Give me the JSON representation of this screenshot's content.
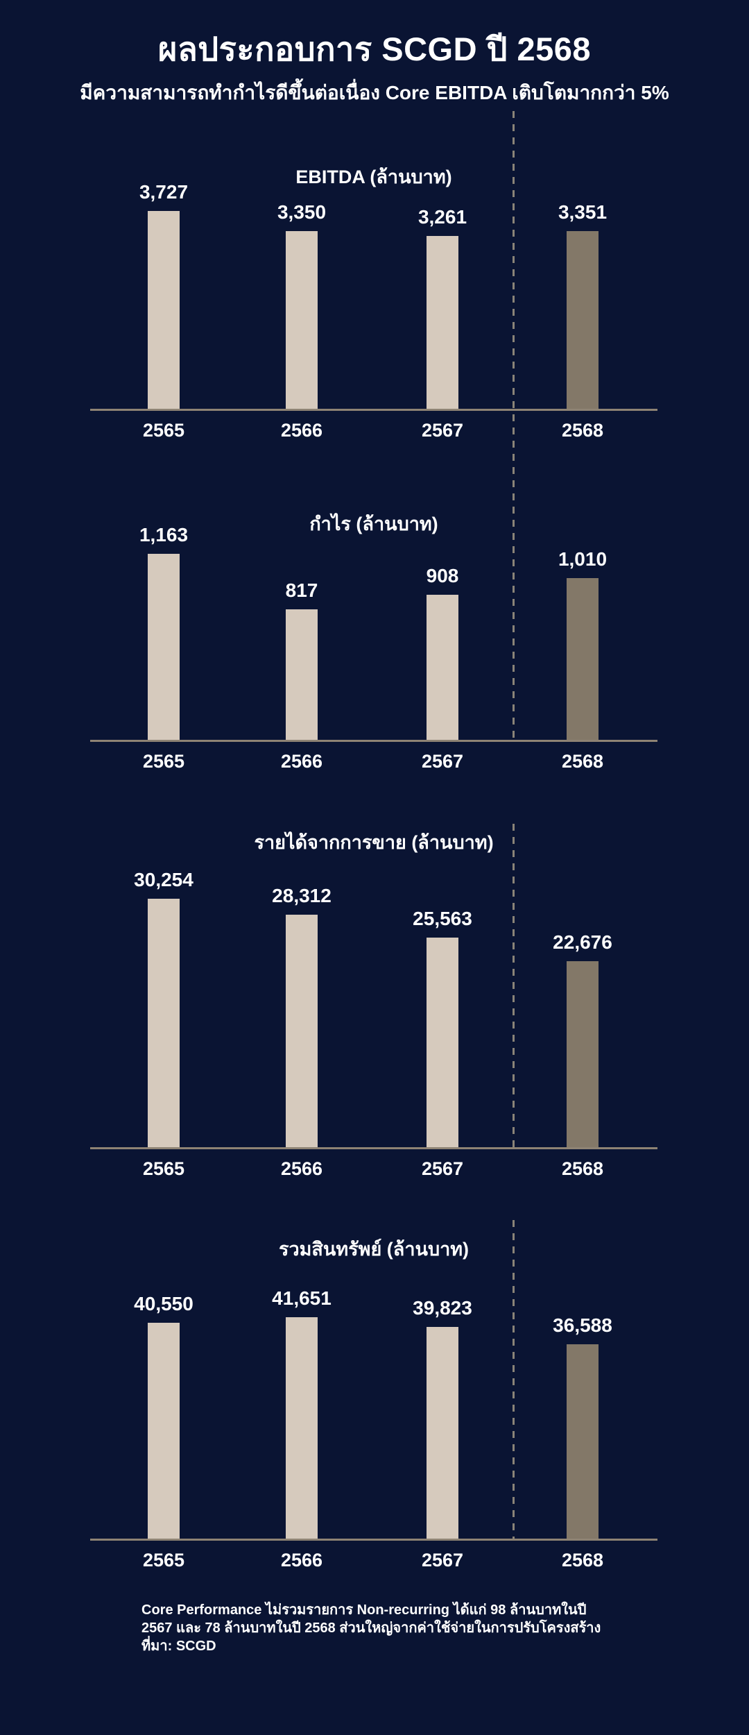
{
  "page": {
    "title": "ผลประกอบการ SCGD ปี 2568",
    "subtitle": "มีความสามารถทำกำไรดีขึ้นต่อเนื่อง Core EBITDA เติบโตมากกว่า 5%",
    "highlight_year": "2568"
  },
  "chart_data": [
    {
      "type": "bar",
      "title": "EBITDA (ล้านบาท)",
      "unit": "ล้านบาท",
      "categories": [
        "2565",
        "2566",
        "2567",
        "2568"
      ],
      "values": [
        3727,
        3350,
        3261,
        3351
      ],
      "value_labels": [
        "3,727",
        "3,350",
        "3,261",
        "3,351"
      ],
      "highlight_category": "2568",
      "grid": false,
      "legend": false,
      "scale_from_zero": true
    },
    {
      "type": "bar",
      "title": "กำไร (ล้านบาท)",
      "unit": "ล้านบาท",
      "categories": [
        "2565",
        "2566",
        "2567",
        "2568"
      ],
      "values": [
        1163,
        817,
        908,
        1010
      ],
      "value_labels": [
        "1,163",
        "817",
        "908",
        "1,010"
      ],
      "highlight_category": "2568",
      "grid": false,
      "legend": false,
      "scale_from_zero": true
    },
    {
      "type": "bar",
      "title": "รายได้จากการขาย (ล้านบาท)",
      "unit": "ล้านบาท",
      "categories": [
        "2565",
        "2566",
        "2567",
        "2568"
      ],
      "values": [
        30254,
        28312,
        25563,
        22676
      ],
      "value_labels": [
        "30,254",
        "28,312",
        "25,563",
        "22,676"
      ],
      "highlight_category": "2568",
      "grid": false,
      "legend": false,
      "scale_from_zero": true
    },
    {
      "type": "bar",
      "title": "รวมสินทรัพย์ (ล้านบาท)",
      "unit": "ล้านบาท",
      "categories": [
        "2565",
        "2566",
        "2567",
        "2568"
      ],
      "values": [
        40550,
        41651,
        39823,
        36588
      ],
      "value_labels": [
        "40,550",
        "41,651",
        "39,823",
        "36,588"
      ],
      "highlight_category": "2568",
      "grid": false,
      "legend": false,
      "scale_from_zero": true
    }
  ],
  "footer": {
    "lines": [
      "Core Performance ไม่รวมรายการ Non-recurring ได้แก่ 98 ล้านบาทในปี",
      "2567 และ 78 ล้านบาทในปี 2568 ส่วนใหญ่จากค่าใช้จ่ายในการปรับโครงสร้าง",
      "ที่มา: SCGD"
    ]
  },
  "colors": {
    "background": "#0a1433",
    "bar": "#d6cabd",
    "bar_highlight": "#837868",
    "axis": "#8e8374",
    "dash": "#8a8478",
    "text": "#ffffff"
  }
}
